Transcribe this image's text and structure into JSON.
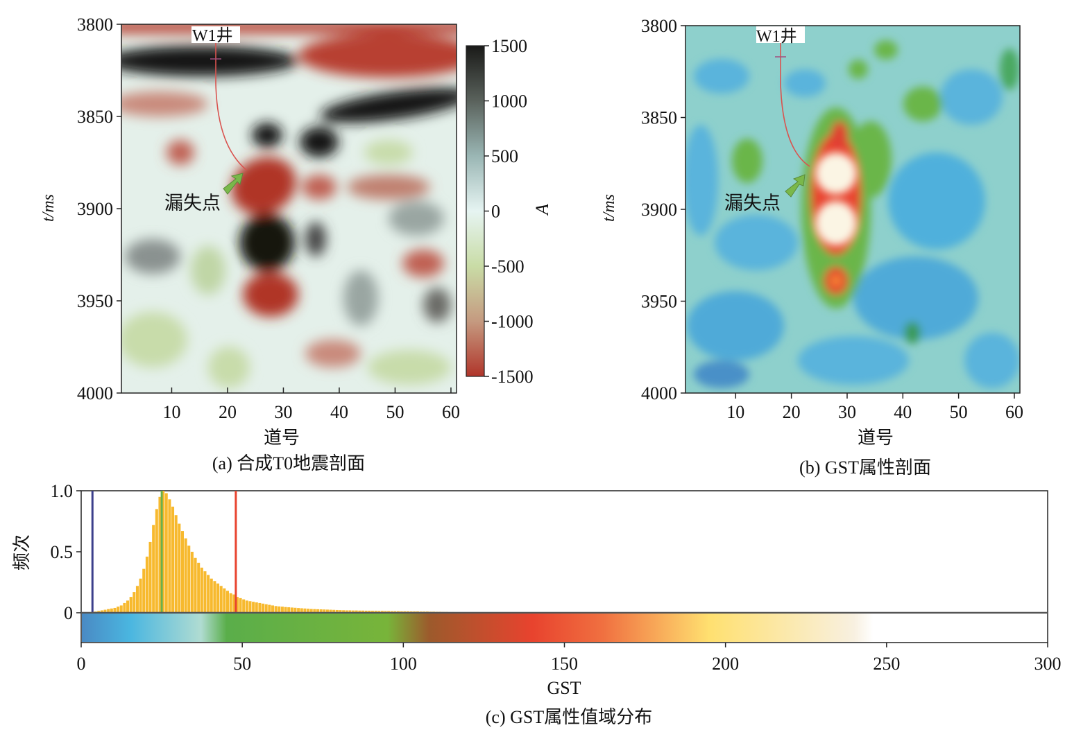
{
  "chart_data": [
    {
      "type": "heatmap",
      "caption": "(a) 合成T0地震剖面",
      "xlabel": "道号",
      "ylabel": "t/ms",
      "xlim": [
        1,
        61
      ],
      "ylim": [
        4000,
        3800
      ],
      "xticks": [
        "10",
        "20",
        "30",
        "40",
        "50",
        "60"
      ],
      "yticks": [
        "3800",
        "3850",
        "3900",
        "3950",
        "4000"
      ],
      "colorbar": {
        "label": "A",
        "range": [
          -1500,
          1500
        ],
        "ticks": [
          "1500",
          "1000",
          "500",
          "0",
          "-500",
          "-1000",
          "-1500"
        ],
        "colors": [
          "#1a1a18",
          "#5a625c",
          "#9ab6b4",
          "#e6f4f2",
          "#c9dca6",
          "#c59a80",
          "#b0352a"
        ]
      },
      "annotations": {
        "well": "W1井",
        "loss_point": "漏失点"
      }
    },
    {
      "type": "heatmap",
      "caption": "(b) GST属性剖面",
      "xlabel": "道号",
      "ylabel": "t/ms",
      "xlim": [
        1,
        61
      ],
      "ylim": [
        4000,
        3800
      ],
      "xticks": [
        "10",
        "20",
        "30",
        "40",
        "50",
        "60"
      ],
      "yticks": [
        "3800",
        "3850",
        "3900",
        "3950",
        "4000"
      ],
      "annotations": {
        "well": "W1井",
        "loss_point": "漏失点"
      }
    },
    {
      "type": "bar",
      "caption": "(c) GST属性值域分布",
      "xlabel": "GST",
      "ylabel": "频次",
      "xlim": [
        0,
        300
      ],
      "ylim": [
        0,
        1.0
      ],
      "xticks": [
        "0",
        "50",
        "100",
        "150",
        "200",
        "250",
        "300"
      ],
      "yticks": [
        "1.0",
        "0.5",
        "0"
      ],
      "bin_start": 4,
      "bin_width": 1,
      "values": [
        0.01,
        0.015,
        0.02,
        0.025,
        0.03,
        0.035,
        0.04,
        0.05,
        0.06,
        0.08,
        0.1,
        0.13,
        0.17,
        0.22,
        0.28,
        0.36,
        0.46,
        0.58,
        0.72,
        0.85,
        0.95,
        1.0,
        0.98,
        0.93,
        0.87,
        0.8,
        0.73,
        0.67,
        0.61,
        0.55,
        0.5,
        0.45,
        0.41,
        0.37,
        0.34,
        0.31,
        0.28,
        0.26,
        0.24,
        0.22,
        0.2,
        0.18,
        0.16,
        0.15,
        0.13,
        0.12,
        0.11,
        0.1,
        0.095,
        0.09,
        0.085,
        0.08,
        0.075,
        0.07,
        0.065,
        0.06,
        0.055,
        0.052,
        0.05,
        0.047,
        0.045,
        0.043,
        0.041,
        0.039,
        0.037,
        0.035,
        0.033,
        0.031,
        0.03,
        0.029,
        0.028,
        0.027,
        0.026,
        0.025,
        0.024,
        0.023,
        0.022,
        0.021,
        0.02,
        0.02,
        0.019,
        0.019,
        0.018,
        0.018,
        0.017,
        0.017,
        0.016,
        0.016,
        0.015,
        0.015,
        0.014,
        0.014,
        0.013,
        0.013,
        0.013,
        0.012,
        0.012,
        0.012,
        0.011,
        0.011,
        0.011,
        0.01,
        0.01,
        0.01,
        0.009,
        0.009,
        0.008,
        0.008,
        0.007,
        0.007,
        0.006,
        0.006,
        0.005,
        0.005,
        0.005,
        0.004,
        0.004
      ],
      "bar_color": "#f7b92e",
      "vlines": [
        {
          "x": 3.5,
          "color": "#3b3f8c"
        },
        {
          "x": 25,
          "color": "#6ab04c"
        },
        {
          "x": 48,
          "color": "#e8432e"
        }
      ],
      "colormap": [
        {
          "x": 0,
          "color": "#4a8ac4"
        },
        {
          "x": 15,
          "color": "#4ab6e0"
        },
        {
          "x": 37,
          "color": "#b0dcd2"
        },
        {
          "x": 45,
          "color": "#5aae4a"
        },
        {
          "x": 95,
          "color": "#78b43a"
        },
        {
          "x": 108,
          "color": "#9c5a2c"
        },
        {
          "x": 140,
          "color": "#e8432e"
        },
        {
          "x": 162,
          "color": "#f07040"
        },
        {
          "x": 195,
          "color": "#ffe070"
        },
        {
          "x": 240,
          "color": "#f8f0e0"
        },
        {
          "x": 246,
          "color": "#ffffff"
        }
      ]
    }
  ]
}
